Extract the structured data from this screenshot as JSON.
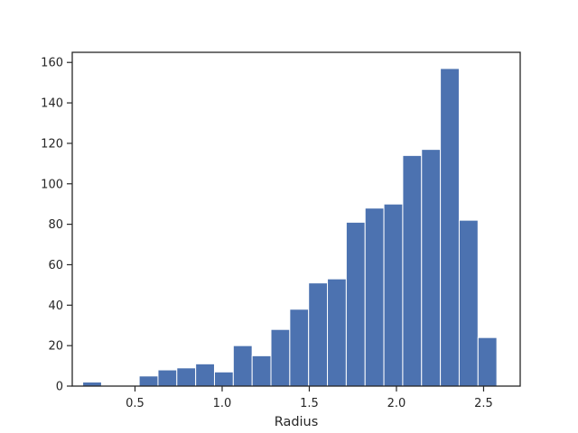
{
  "chart_data": {
    "type": "bar",
    "title": "",
    "xlabel": "Radius",
    "ylabel": "",
    "xlim": [
      0.14,
      2.71
    ],
    "ylim": [
      0,
      165
    ],
    "xticks": [
      0.5,
      1.0,
      1.5,
      2.0,
      2.5
    ],
    "xtick_labels": [
      "0.5",
      "1.0",
      "1.5",
      "2.0",
      "2.5"
    ],
    "yticks": [
      0,
      20,
      40,
      60,
      80,
      100,
      120,
      140,
      160
    ],
    "ytick_labels": [
      "0",
      "20",
      "40",
      "60",
      "80",
      "100",
      "120",
      "140",
      "160"
    ],
    "bin_edges": [
      0.2,
      0.308,
      0.416,
      0.524,
      0.632,
      0.74,
      0.848,
      0.956,
      1.064,
      1.172,
      1.28,
      1.388,
      1.496,
      1.604,
      1.712,
      1.82,
      1.928,
      2.036,
      2.144,
      2.252,
      2.36,
      2.468,
      2.576
    ],
    "values": [
      2,
      0,
      0,
      5,
      8,
      9,
      11,
      7,
      20,
      15,
      28,
      38,
      51,
      53,
      81,
      88,
      90,
      114,
      117,
      157,
      82,
      24
    ],
    "grid": false,
    "colors": {
      "bar": "#4c72b0",
      "axes": "#262626",
      "background": "#ffffff"
    }
  }
}
